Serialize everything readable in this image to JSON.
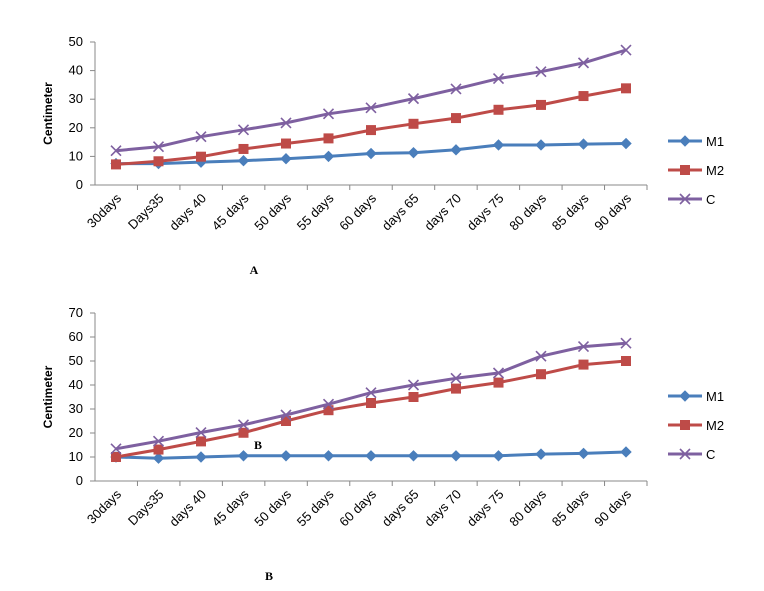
{
  "chart_data": [
    {
      "type": "line",
      "panel_label": "A",
      "ylabel": "Centimeter",
      "ylim": [
        0,
        50
      ],
      "yticks": [
        0,
        10,
        20,
        30,
        40,
        50
      ],
      "categories": [
        "30days",
        "Days35",
        "days 40",
        "45 days",
        "50 days",
        "55 days",
        "60 days",
        "days 65",
        "days 70",
        "days 75",
        "80 days",
        "85 days",
        "90 days"
      ],
      "legend_position": "right",
      "series": [
        {
          "name": "M1",
          "color": "#4a7ebb",
          "marker": "diamond",
          "values": [
            7.5,
            7.5,
            8.0,
            8.5,
            9.2,
            10.0,
            11.0,
            11.3,
            12.3,
            14.0,
            14.0,
            14.3,
            14.5
          ]
        },
        {
          "name": "M2",
          "color": "#be4b48",
          "marker": "square",
          "values": [
            7.2,
            8.3,
            9.9,
            12.6,
            14.5,
            16.3,
            19.2,
            21.4,
            23.4,
            26.3,
            28.0,
            31.1,
            33.8
          ]
        },
        {
          "name": "C",
          "color": "#7e60a0",
          "marker": "x",
          "values": [
            12.0,
            13.4,
            16.9,
            19.3,
            21.7,
            24.9,
            27.0,
            30.2,
            33.6,
            37.2,
            39.6,
            42.7,
            47.2
          ]
        }
      ]
    },
    {
      "type": "line",
      "panel_label": "B",
      "inner_label": "B",
      "ylabel": "Centimeter",
      "ylim": [
        0,
        70
      ],
      "yticks": [
        0,
        10,
        20,
        30,
        40,
        50,
        60,
        70
      ],
      "categories": [
        "30days",
        "Days35",
        "days 40",
        "45 days",
        "50 days",
        "55 days",
        "60 days",
        "days 65",
        "days 70",
        "days 75",
        "80 days",
        "85 days",
        "90 days"
      ],
      "legend_position": "right",
      "series": [
        {
          "name": "M1",
          "color": "#4a7ebb",
          "marker": "diamond",
          "values": [
            10.0,
            9.5,
            10.0,
            10.5,
            10.5,
            10.5,
            10.5,
            10.5,
            10.5,
            10.5,
            11.2,
            11.5,
            12.1
          ]
        },
        {
          "name": "M2",
          "color": "#be4b48",
          "marker": "square",
          "values": [
            10.0,
            13.1,
            16.5,
            20.1,
            25.0,
            29.5,
            32.5,
            35.0,
            38.5,
            41.0,
            44.5,
            48.5,
            50.0
          ]
        },
        {
          "name": "C",
          "color": "#7e60a0",
          "marker": "x",
          "values": [
            13.4,
            16.6,
            20.2,
            23.4,
            27.5,
            32.0,
            36.8,
            40.0,
            42.8,
            45.0,
            52.0,
            56.0,
            57.4
          ]
        }
      ]
    }
  ]
}
